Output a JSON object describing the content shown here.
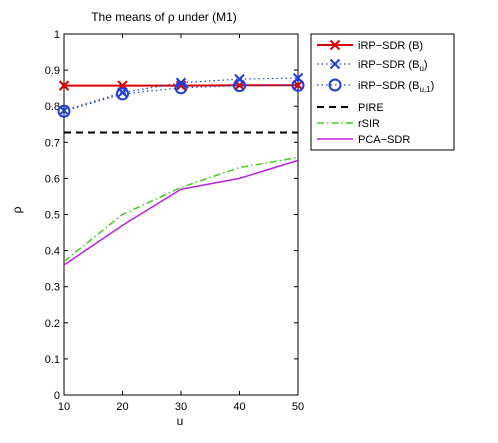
{
  "chart_data": {
    "type": "line",
    "title": "The means of ρ under (M1)",
    "xlabel": "u",
    "ylabel": "ρ",
    "x": [
      10,
      20,
      30,
      40,
      50
    ],
    "xlim": [
      10,
      50
    ],
    "ylim": [
      0,
      1
    ],
    "xticks": [
      "10",
      "20",
      "30",
      "40",
      "50"
    ],
    "yticks": [
      "0",
      "0.1",
      "0.2",
      "0.3",
      "0.4",
      "0.5",
      "0.6",
      "0.7",
      "0.8",
      "0.9",
      "1"
    ],
    "grid": false,
    "legend_position": "outside-top-right",
    "series": [
      {
        "name_main": "iRP−SDR (B)",
        "name_sub": "",
        "name_close": "",
        "values": [
          0.857,
          0.857,
          0.857,
          0.858,
          0.858
        ],
        "color": "#dd0000",
        "dash": "",
        "width": 2,
        "marker": "x"
      },
      {
        "name_main": "iRP−SDR (B",
        "name_sub": "u",
        "name_close": ")",
        "values": [
          0.788,
          0.838,
          0.865,
          0.875,
          0.878
        ],
        "color": "#1f3fd6",
        "dash": "1.5 3",
        "width": 1.2,
        "marker": "x"
      },
      {
        "name_main": "iRP−SDR (B",
        "name_sub": "u,1",
        "name_close": ")",
        "values": [
          0.786,
          0.834,
          0.851,
          0.857,
          0.858
        ],
        "color": "#1f3fd6",
        "dash": "1.5 3",
        "width": 1.2,
        "marker": "o"
      },
      {
        "name_main": "PIRE",
        "name_sub": "",
        "name_close": "",
        "values": [
          0.727,
          0.727,
          0.727,
          0.727,
          0.727
        ],
        "color": "#000000",
        "dash": "7 5",
        "width": 2,
        "marker": ""
      },
      {
        "name_main": "rSIR",
        "name_sub": "",
        "name_close": "",
        "values": [
          0.37,
          0.5,
          0.575,
          0.63,
          0.658
        ],
        "color": "#44cc22",
        "dash": "7 3 1.5 3",
        "width": 1.5,
        "marker": ""
      },
      {
        "name_main": "PCA−SDR",
        "name_sub": "",
        "name_close": "",
        "values": [
          0.36,
          0.47,
          0.57,
          0.6,
          0.65
        ],
        "color": "#bb22dd",
        "dash": "",
        "width": 1.5,
        "marker": ""
      }
    ]
  }
}
